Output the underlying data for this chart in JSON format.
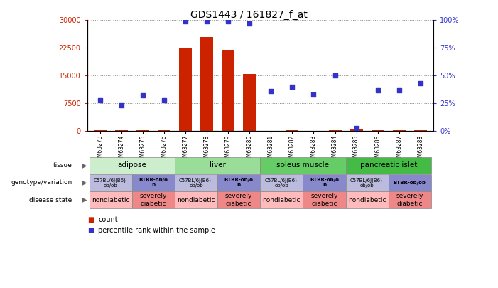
{
  "title": "GDS1443 / 161827_f_at",
  "samples": [
    "GSM63273",
    "GSM63274",
    "GSM63275",
    "GSM63276",
    "GSM63277",
    "GSM63278",
    "GSM63279",
    "GSM63280",
    "GSM63281",
    "GSM63282",
    "GSM63283",
    "GSM63284",
    "GSM63285",
    "GSM63286",
    "GSM63287",
    "GSM63288"
  ],
  "counts": [
    200,
    150,
    300,
    200,
    22500,
    25500,
    22000,
    15500,
    100,
    150,
    100,
    200,
    700,
    300,
    200,
    150
  ],
  "percentile": [
    28,
    23,
    32,
    28,
    99,
    99,
    99,
    97,
    36,
    40,
    33,
    50,
    3,
    37,
    37,
    43
  ],
  "ylim_left": [
    0,
    30000
  ],
  "ylim_right": [
    0,
    100
  ],
  "yticks_left": [
    0,
    7500,
    15000,
    22500,
    30000
  ],
  "yticks_right": [
    0,
    25,
    50,
    75,
    100
  ],
  "bar_color": "#cc2200",
  "dot_color": "#3333cc",
  "tissue_groups": [
    {
      "label": "adipose",
      "start": 0,
      "end": 3,
      "color": "#cceecc"
    },
    {
      "label": "liver",
      "start": 4,
      "end": 7,
      "color": "#99dd99"
    },
    {
      "label": "soleus muscle",
      "start": 8,
      "end": 11,
      "color": "#66cc66"
    },
    {
      "label": "pancreatic islet",
      "start": 12,
      "end": 15,
      "color": "#44bb44"
    }
  ],
  "genotype_labels": [
    {
      "label": "C57BL/6J(B6)-\nob/ob",
      "start": 0,
      "end": 1,
      "color": "#bbbbdd"
    },
    {
      "label": "BTBR-ob/o\nb",
      "start": 2,
      "end": 3,
      "color": "#8888cc"
    },
    {
      "label": "C57BL/6J(B6)-\nob/ob",
      "start": 4,
      "end": 5,
      "color": "#bbbbdd"
    },
    {
      "label": "BTBR-ob/o\nb",
      "start": 6,
      "end": 7,
      "color": "#8888cc"
    },
    {
      "label": "C57BL/6J(B6)-\nob/ob",
      "start": 8,
      "end": 9,
      "color": "#bbbbdd"
    },
    {
      "label": "BTBR-ob/o\nb",
      "start": 10,
      "end": 11,
      "color": "#8888cc"
    },
    {
      "label": "C57BL/6J(B6)-\nob/ob",
      "start": 12,
      "end": 13,
      "color": "#bbbbdd"
    },
    {
      "label": "BTBR-ob/ob",
      "start": 14,
      "end": 15,
      "color": "#8888cc"
    }
  ],
  "disease_groups": [
    {
      "label": "nondiabetic",
      "start": 0,
      "end": 1,
      "color": "#ffbbbb"
    },
    {
      "label": "severely\ndiabetic",
      "start": 2,
      "end": 3,
      "color": "#ee8888"
    },
    {
      "label": "nondiabetic",
      "start": 4,
      "end": 5,
      "color": "#ffbbbb"
    },
    {
      "label": "severely\ndiabetic",
      "start": 6,
      "end": 7,
      "color": "#ee8888"
    },
    {
      "label": "nondiabetic",
      "start": 8,
      "end": 9,
      "color": "#ffbbbb"
    },
    {
      "label": "severely\ndiabetic",
      "start": 10,
      "end": 11,
      "color": "#ee8888"
    },
    {
      "label": "nondiabetic",
      "start": 12,
      "end": 13,
      "color": "#ffbbbb"
    },
    {
      "label": "severely\ndiabetic",
      "start": 14,
      "end": 15,
      "color": "#ee8888"
    }
  ],
  "row_labels": [
    "tissue",
    "genotype/variation",
    "disease state"
  ],
  "legend_count_color": "#cc2200",
  "legend_pct_color": "#3333cc",
  "bg_color": "#ffffff",
  "grid_color": "#888888"
}
